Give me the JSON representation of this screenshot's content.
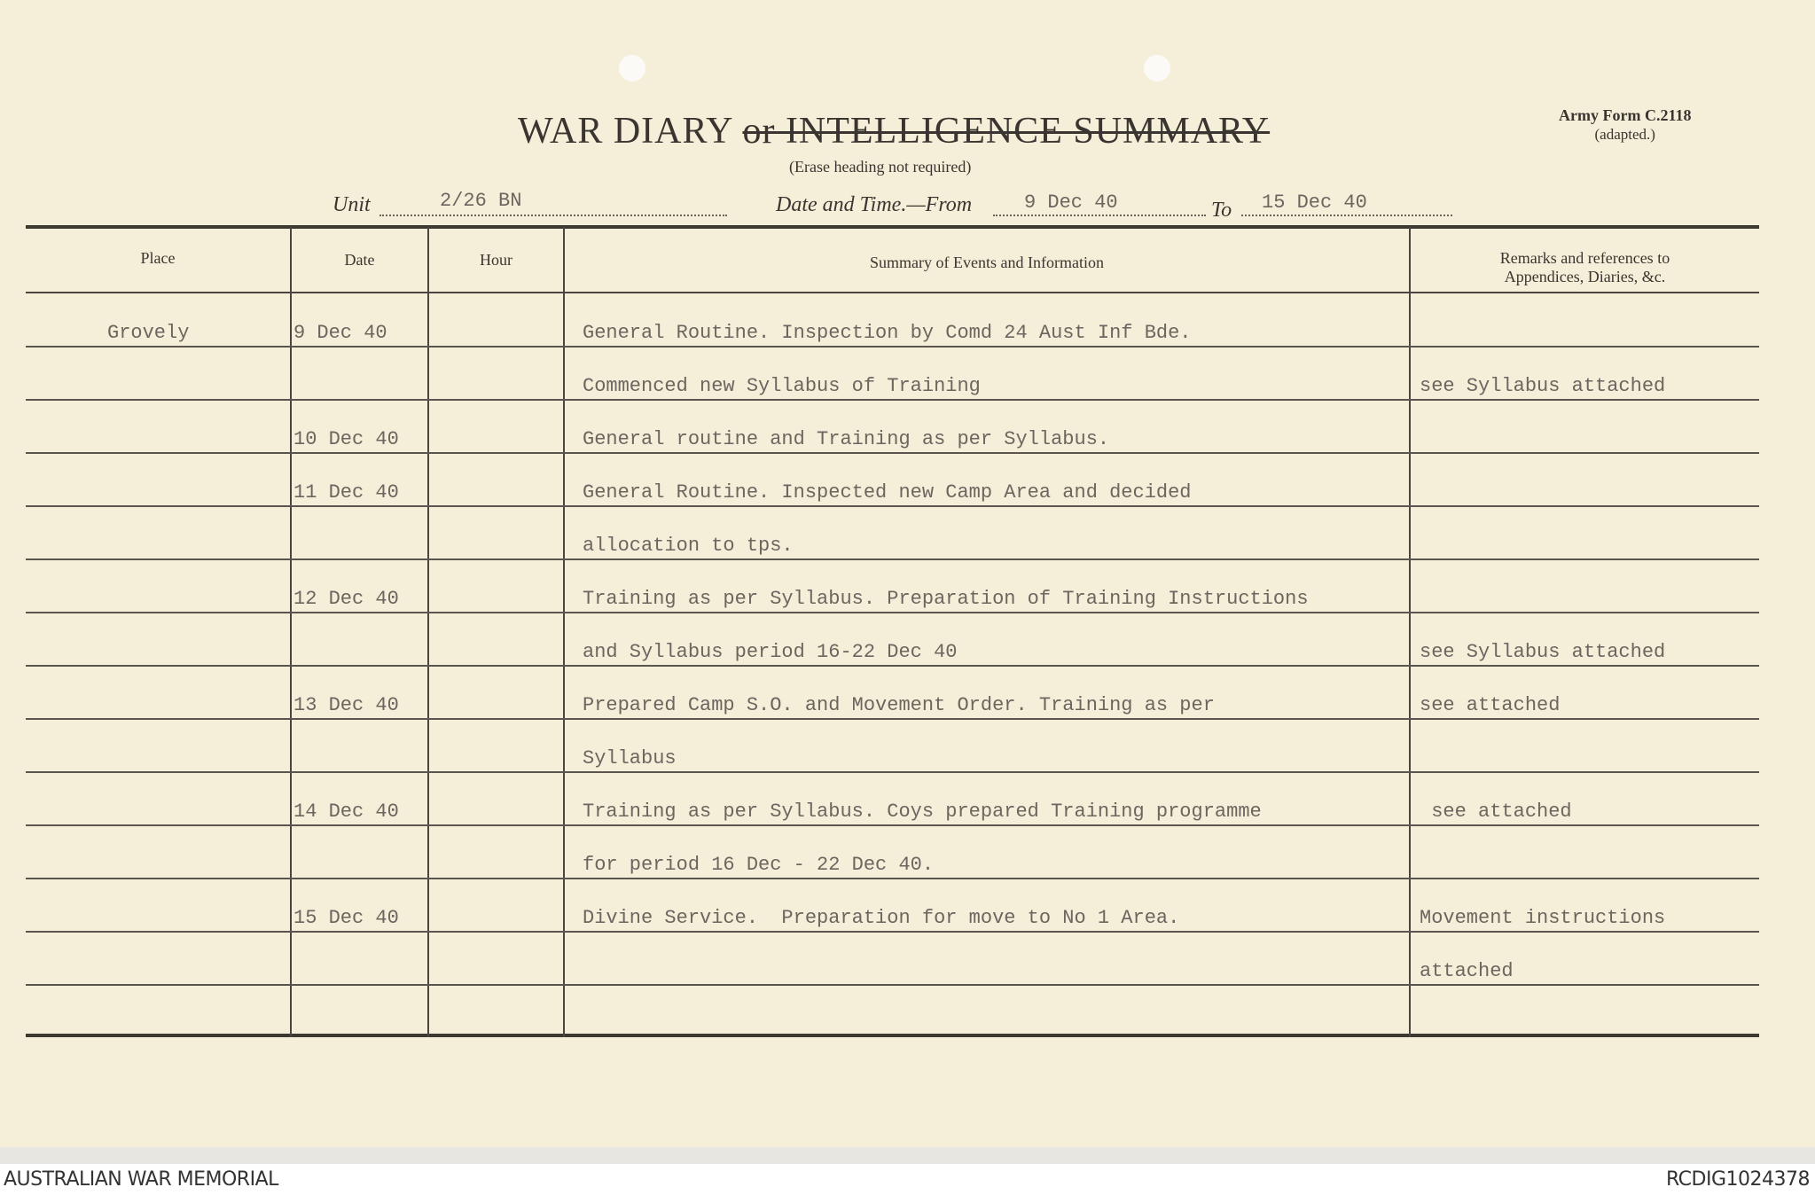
{
  "form": {
    "title_main": "WAR DIARY",
    "title_struck": "or INTELLIGENCE SUMMARY",
    "subtitle": "(Erase heading not required)",
    "army_form": "Army Form C.2118",
    "army_form_note": "(adapted.)",
    "unit_label": "Unit",
    "unit_value": "2/26 BN",
    "date_label": "Date and Time.—From",
    "date_from": "9 Dec 40",
    "to_label": "To",
    "date_to": "15 Dec 40"
  },
  "table": {
    "headers": {
      "place": "Place",
      "date": "Date",
      "hour": "Hour",
      "summary": "Summary of Events and Information",
      "remarks_1": "Remarks and references to",
      "remarks_2": "Appendices, Diaries, &c."
    },
    "rows": [
      {
        "place": "Grovely",
        "date": "9 Dec 40",
        "hour": "",
        "summary": "General Routine. Inspection by Comd 24 Aust Inf Bde.",
        "remarks": ""
      },
      {
        "place": "",
        "date": "",
        "hour": "",
        "summary": "Commenced new Syllabus of Training",
        "remarks": "see Syllabus attached"
      },
      {
        "place": "",
        "date": "10 Dec 40",
        "hour": "",
        "summary": "General routine and Training as per Syllabus.",
        "remarks": ""
      },
      {
        "place": "",
        "date": "11 Dec 40",
        "hour": "",
        "summary": "General Routine. Inspected new Camp Area and decided",
        "remarks": ""
      },
      {
        "place": "",
        "date": "",
        "hour": "",
        "summary": "allocation to tps.",
        "remarks": ""
      },
      {
        "place": "",
        "date": "12 Dec 40",
        "hour": "",
        "summary": "Training as per Syllabus. Preparation of Training Instructions",
        "remarks": ""
      },
      {
        "place": "",
        "date": "",
        "hour": "",
        "summary": "and Syllabus period 16-22 Dec 40",
        "remarks": "see Syllabus attached"
      },
      {
        "place": "",
        "date": "13 Dec 40",
        "hour": "",
        "summary": "Prepared Camp S.O. and Movement Order. Training as per",
        "remarks": "see attached"
      },
      {
        "place": "",
        "date": "",
        "hour": "",
        "summary": "Syllabus",
        "remarks": ""
      },
      {
        "place": "",
        "date": "14 Dec 40",
        "hour": "",
        "summary": "Training as per Syllabus. Coys prepared Training programme",
        "remarks": " see attached"
      },
      {
        "place": "",
        "date": "",
        "hour": "",
        "summary": "for period 16 Dec - 22 Dec 40.",
        "remarks": ""
      },
      {
        "place": "",
        "date": "15 Dec 40",
        "hour": "",
        "summary": "Divine Service.  Preparation for move to No 1 Area.",
        "remarks": "Movement instructions"
      },
      {
        "place": "",
        "date": "",
        "hour": "",
        "summary": "",
        "remarks": "attached"
      }
    ]
  },
  "footer": {
    "left": "AUSTRALIAN WAR MEMORIAL",
    "right": "RCDIG1024378"
  }
}
